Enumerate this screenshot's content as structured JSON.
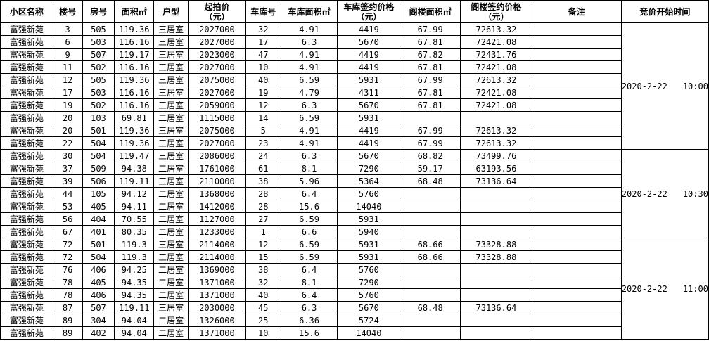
{
  "headers": [
    "小区名称",
    "楼号",
    "房号",
    "面积㎡",
    "户型",
    "起拍价\n（元）",
    "车库号",
    "车库面积㎡",
    "车库签约价格\n（元）",
    "阁楼面积㎡",
    "阁楼签约价格\n（元）",
    "备注",
    "竞价开始时间"
  ],
  "groups": [
    {
      "date": "2020-2-22",
      "time": "10:00",
      "rows": [
        [
          "富强新苑",
          "3",
          "505",
          "119.36",
          "三居室",
          "2027000",
          "32",
          "4.91",
          "4419",
          "67.99",
          "72613.32",
          ""
        ],
        [
          "富强新苑",
          "6",
          "503",
          "116.16",
          "三居室",
          "2027000",
          "17",
          "6.3",
          "5670",
          "67.81",
          "72421.08",
          ""
        ],
        [
          "富强新苑",
          "9",
          "507",
          "119.17",
          "三居室",
          "2023000",
          "47",
          "4.91",
          "4419",
          "67.82",
          "72431.76",
          ""
        ],
        [
          "富强新苑",
          "11",
          "502",
          "116.16",
          "三居室",
          "2027000",
          "10",
          "4.91",
          "4419",
          "67.81",
          "72421.08",
          ""
        ],
        [
          "富强新苑",
          "12",
          "505",
          "119.36",
          "三居室",
          "2075000",
          "40",
          "6.59",
          "5931",
          "67.99",
          "72613.32",
          ""
        ],
        [
          "富强新苑",
          "17",
          "503",
          "116.16",
          "三居室",
          "2027000",
          "19",
          "4.79",
          "4311",
          "67.81",
          "72421.08",
          ""
        ],
        [
          "富强新苑",
          "19",
          "502",
          "116.16",
          "三居室",
          "2059000",
          "12",
          "6.3",
          "5670",
          "67.81",
          "72421.08",
          ""
        ],
        [
          "富强新苑",
          "20",
          "103",
          "69.81",
          "二居室",
          "1115000",
          "14",
          "6.59",
          "5931",
          "",
          "",
          ""
        ],
        [
          "富强新苑",
          "20",
          "501",
          "119.36",
          "三居室",
          "2075000",
          "5",
          "4.91",
          "4419",
          "67.99",
          "72613.32",
          ""
        ],
        [
          "富强新苑",
          "22",
          "504",
          "119.36",
          "三居室",
          "2027000",
          "23",
          "4.91",
          "4419",
          "67.99",
          "72613.32",
          ""
        ]
      ]
    },
    {
      "date": "2020-2-22",
      "time": "10:30",
      "rows": [
        [
          "富强新苑",
          "30",
          "504",
          "119.47",
          "三居室",
          "2086000",
          "24",
          "6.3",
          "5670",
          "68.82",
          "73499.76",
          ""
        ],
        [
          "富强新苑",
          "37",
          "509",
          "94.38",
          "二居室",
          "1761000",
          "61",
          "8.1",
          "7290",
          "59.17",
          "63193.56",
          ""
        ],
        [
          "富强新苑",
          "39",
          "506",
          "119.11",
          "三居室",
          "2110000",
          "38",
          "5.96",
          "5364",
          "68.48",
          "73136.64",
          ""
        ],
        [
          "富强新苑",
          "44",
          "105",
          "94.12",
          "二居室",
          "1368000",
          "28",
          "6.4",
          "5760",
          "",
          "",
          ""
        ],
        [
          "富强新苑",
          "53",
          "405",
          "94.11",
          "二居室",
          "1412000",
          "28",
          "15.6",
          "14040",
          "",
          "",
          ""
        ],
        [
          "富强新苑",
          "56",
          "404",
          "70.55",
          "二居室",
          "1127000",
          "27",
          "6.59",
          "5931",
          "",
          "",
          ""
        ],
        [
          "富强新苑",
          "67",
          "401",
          "80.35",
          "二居室",
          "1233000",
          "1",
          "6.6",
          "5940",
          "",
          "",
          ""
        ]
      ]
    },
    {
      "date": "2020-2-22",
      "time": "11:00",
      "rows": [
        [
          "富强新苑",
          "72",
          "501",
          "119.3",
          "三居室",
          "2114000",
          "12",
          "6.59",
          "5931",
          "68.66",
          "73328.88",
          ""
        ],
        [
          "富强新苑",
          "72",
          "504",
          "119.3",
          "三居室",
          "2114000",
          "15",
          "6.59",
          "5931",
          "68.66",
          "73328.88",
          ""
        ],
        [
          "富强新苑",
          "76",
          "406",
          "94.25",
          "二居室",
          "1369000",
          "38",
          "6.4",
          "5760",
          "",
          "",
          ""
        ],
        [
          "富强新苑",
          "78",
          "405",
          "94.35",
          "二居室",
          "1371000",
          "32",
          "8.1",
          "7290",
          "",
          "",
          ""
        ],
        [
          "富强新苑",
          "78",
          "406",
          "94.35",
          "二居室",
          "1371000",
          "40",
          "6.4",
          "5760",
          "",
          "",
          ""
        ],
        [
          "富强新苑",
          "87",
          "507",
          "119.11",
          "三居室",
          "2030000",
          "45",
          "6.3",
          "5670",
          "68.48",
          "73136.64",
          ""
        ],
        [
          "富强新苑",
          "89",
          "304",
          "94.04",
          "二居室",
          "1326000",
          "25",
          "6.36",
          "5724",
          "",
          "",
          ""
        ],
        [
          "富强新苑",
          "89",
          "402",
          "94.04",
          "二居室",
          "1371000",
          "10",
          "15.6",
          "14040",
          "",
          "",
          ""
        ]
      ]
    }
  ]
}
